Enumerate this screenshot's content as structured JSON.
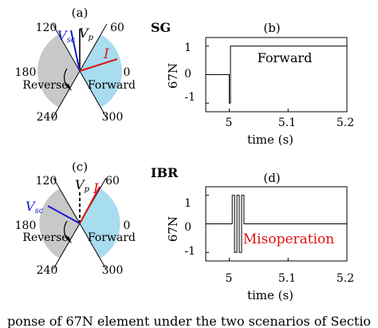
{
  "panels": {
    "a": {
      "label": "(a)",
      "angles": [
        "120",
        "60",
        "180",
        "0",
        "240",
        "300"
      ],
      "zone_reverse": "Reverse",
      "zone_forward": "Forward",
      "phasor_vsc": {
        "main": "V",
        "sub": "sc"
      },
      "phasor_vp": {
        "main": "V",
        "sub": "p"
      },
      "phasor_i": "I"
    },
    "b": {
      "row_title": "SG",
      "label": "(b)",
      "ylabel": "67N",
      "xlabel": "time (s)",
      "yticks": [
        "1",
        "0",
        "-1"
      ],
      "xticks": [
        "5",
        "5.1",
        "5.2"
      ],
      "annotation": "Forward"
    },
    "c": {
      "label": "(c)",
      "angles": [
        "120",
        "60",
        "180",
        "0",
        "240",
        "300"
      ],
      "zone_reverse": "Reverse",
      "zone_forward": "Forward",
      "phasor_vsc": {
        "main": "V",
        "sub": "sc"
      },
      "phasor_vp": {
        "main": "V",
        "sub": "p"
      },
      "phasor_i": "I"
    },
    "d": {
      "row_title": "IBR",
      "label": "(d)",
      "ylabel": "67N",
      "xlabel": "time (s)",
      "yticks": [
        "1",
        "0",
        "-1"
      ],
      "xticks": [
        "5",
        "5.1",
        "5.2"
      ],
      "annotation": "Misoperation"
    }
  },
  "caption": "ponse of 67N element under the two scenarios of Sectio",
  "colors": {
    "reverse_zone": "#c8c8c8",
    "forward_zone": "#a8dcef",
    "vsc": "#1a1acc",
    "current": "#dd1111",
    "axis": "#000000"
  },
  "chart_data": [
    {
      "type": "line",
      "title": "SG",
      "xlabel": "time (s)",
      "ylabel": "67N",
      "xlim": [
        4.96,
        5.2
      ],
      "ylim": [
        -1.3,
        1.3
      ],
      "xticks": [
        5,
        5.1,
        5.2
      ],
      "yticks": [
        1,
        0,
        -1
      ],
      "series": [
        {
          "x": [
            4.96,
            5.0,
            5.0,
            5.002,
            5.002,
            5.2
          ],
          "y": [
            0,
            0,
            -1,
            -1,
            1,
            1
          ]
        }
      ]
    },
    {
      "type": "line",
      "title": "IBR",
      "xlabel": "time (s)",
      "ylabel": "67N",
      "xlim": [
        4.96,
        5.2
      ],
      "ylim": [
        -1.3,
        1.3
      ],
      "xticks": [
        5,
        5.1,
        5.2
      ],
      "yticks": [
        1,
        0,
        -1
      ],
      "series": [
        {
          "x": [
            4.96,
            5.005,
            5.005,
            5.009,
            5.009,
            5.013,
            5.013,
            5.017,
            5.017,
            5.021,
            5.021,
            5.025,
            5.025,
            5.2
          ],
          "y": [
            0,
            0,
            1,
            1,
            -1,
            -1,
            1,
            1,
            -1,
            -1,
            1,
            1,
            0,
            0
          ]
        }
      ]
    }
  ]
}
